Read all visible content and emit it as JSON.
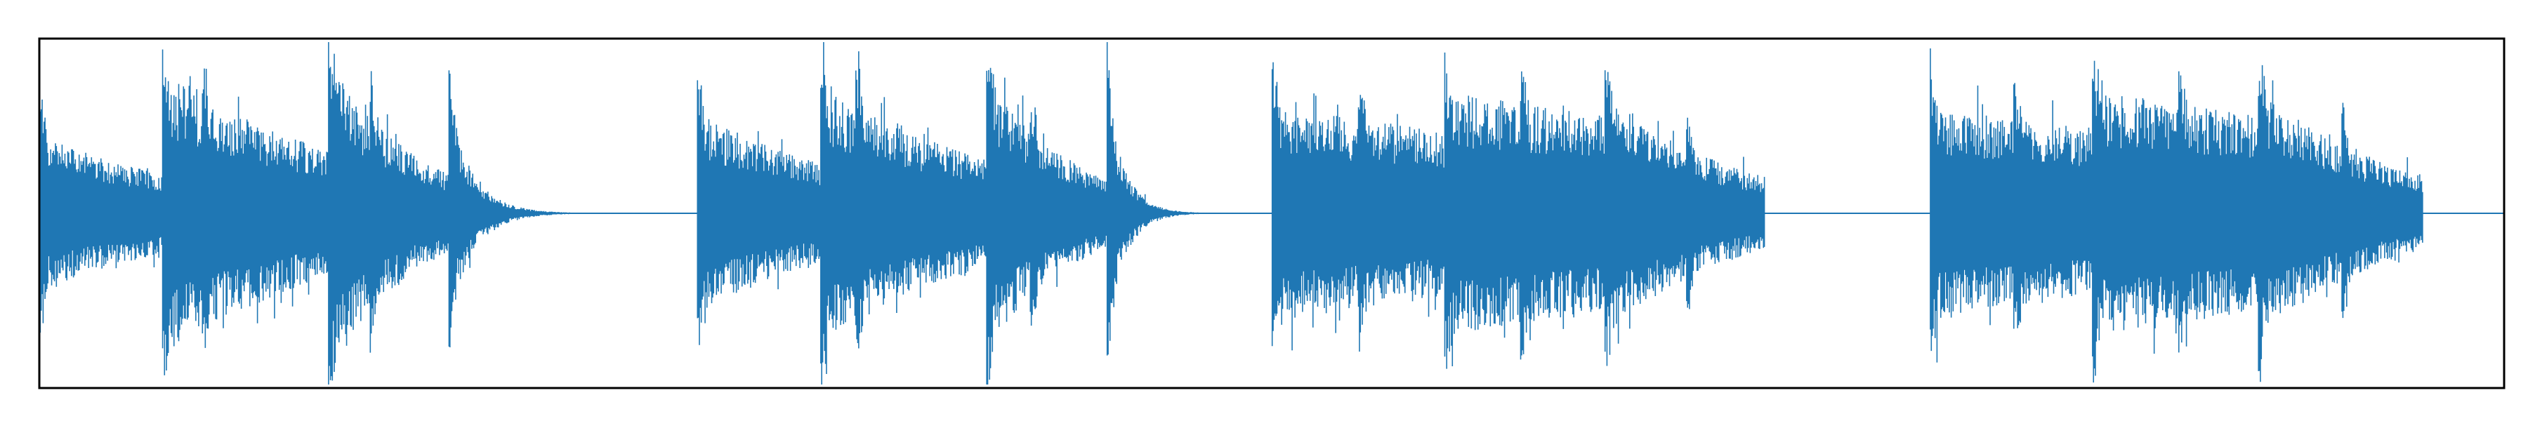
{
  "chart_data": {
    "type": "line",
    "title": "",
    "xlabel": "",
    "ylabel": "",
    "xlim": [
      0,
      1
    ],
    "ylim": [
      -1.0,
      1.0
    ],
    "axis_ticks": false,
    "grid": false,
    "legend": false,
    "colors": {
      "waveform": "#1f77b4",
      "frame": "#000000",
      "background": "#ffffff"
    },
    "series": [
      {
        "envelope_segments": [
          {
            "start": 0.0,
            "end": 0.05,
            "peak": 0.45,
            "decay": 1.2,
            "dense": true
          },
          {
            "start": 0.05,
            "end": 0.117,
            "peak": 0.8,
            "decay": 1.4,
            "dense": true
          },
          {
            "start": 0.117,
            "end": 0.166,
            "peak": 0.9,
            "decay": 2.5,
            "dense": true
          },
          {
            "start": 0.166,
            "end": 0.267,
            "peak": 0.62,
            "decay": 10.0,
            "dense": false
          },
          {
            "start": 0.267,
            "end": 0.317,
            "peak": 0.58,
            "decay": 1.3,
            "dense": true
          },
          {
            "start": 0.317,
            "end": 0.384,
            "peak": 0.72,
            "decay": 1.5,
            "dense": true
          },
          {
            "start": 0.384,
            "end": 0.433,
            "peak": 0.8,
            "decay": 2.5,
            "dense": true
          },
          {
            "start": 0.433,
            "end": 0.5,
            "peak": 0.72,
            "decay": 9.0,
            "dense": false
          },
          {
            "start": 0.5,
            "end": 0.57,
            "peak": 0.62,
            "decay": 0.5,
            "dense": true
          },
          {
            "start": 0.57,
            "end": 0.635,
            "peak": 0.7,
            "decay": 0.4,
            "dense": true
          },
          {
            "start": 0.635,
            "end": 0.7,
            "peak": 0.7,
            "decay": 2.2,
            "dense": true
          },
          {
            "start": 0.7,
            "end": 0.767,
            "peak": 0.0,
            "decay": 1.0,
            "dense": false
          },
          {
            "start": 0.767,
            "end": 0.833,
            "peak": 0.62,
            "decay": 0.5,
            "dense": true
          },
          {
            "start": 0.833,
            "end": 0.9,
            "peak": 0.7,
            "decay": 0.4,
            "dense": true
          },
          {
            "start": 0.9,
            "end": 0.967,
            "peak": 0.72,
            "decay": 2.2,
            "dense": true
          },
          {
            "start": 0.967,
            "end": 1.0,
            "peak": 0.0,
            "decay": 1.0,
            "dense": false
          }
        ],
        "onsets": [
          0.0,
          0.05,
          0.066,
          0.117,
          0.134,
          0.166,
          0.267,
          0.317,
          0.331,
          0.384,
          0.402,
          0.433,
          0.5,
          0.535,
          0.57,
          0.601,
          0.635,
          0.668,
          0.767,
          0.801,
          0.833,
          0.868,
          0.9,
          0.934
        ]
      }
    ]
  }
}
